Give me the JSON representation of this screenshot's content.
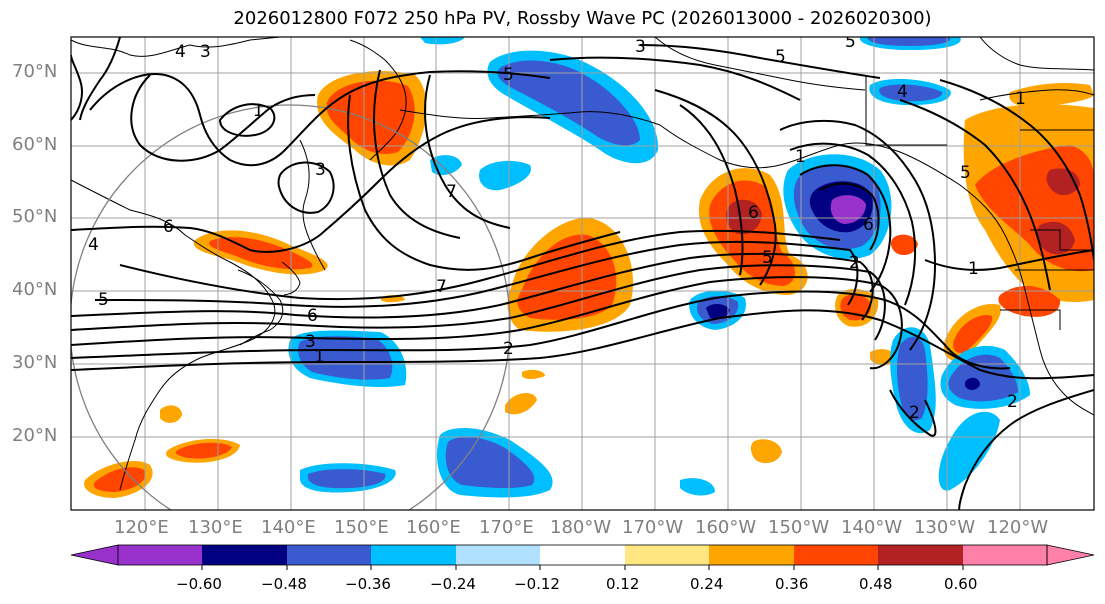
{
  "title": "2026012800 F072 250 hPa PV, Rossby Wave PC (2026013000 - 2026020300)",
  "lat_labels": [
    "70°N",
    "60°N",
    "50°N",
    "40°N",
    "30°N",
    "20°N"
  ],
  "lon_labels": [
    "120°E",
    "130°E",
    "140°E",
    "150°E",
    "160°E",
    "170°E",
    "180°W",
    "170°W",
    "160°W",
    "150°W",
    "140°W",
    "130°W",
    "120°W"
  ],
  "colorbar": {
    "colors": [
      "#9932CC",
      "#000080",
      "#3A5BCF",
      "#00BFFF",
      "#B0E2FF",
      "#FFFFFF",
      "#FFE680",
      "#FFA500",
      "#FF4500",
      "#B22222",
      "#FF80A8"
    ],
    "tick_labels": [
      "−0.60",
      "−0.48",
      "−0.36",
      "−0.24",
      "−0.12",
      "0.12",
      "0.24",
      "0.36",
      "0.48",
      "0.60"
    ]
  },
  "contour_labels": [
    "3",
    "5",
    "5",
    "4",
    "1",
    "1",
    "6",
    "5",
    "6",
    "4",
    "5",
    "7",
    "7",
    "6",
    "3",
    "1",
    "2",
    "1",
    "2",
    "2",
    "5",
    "6",
    "1",
    "3",
    "5",
    "2",
    "3",
    "4"
  ]
}
